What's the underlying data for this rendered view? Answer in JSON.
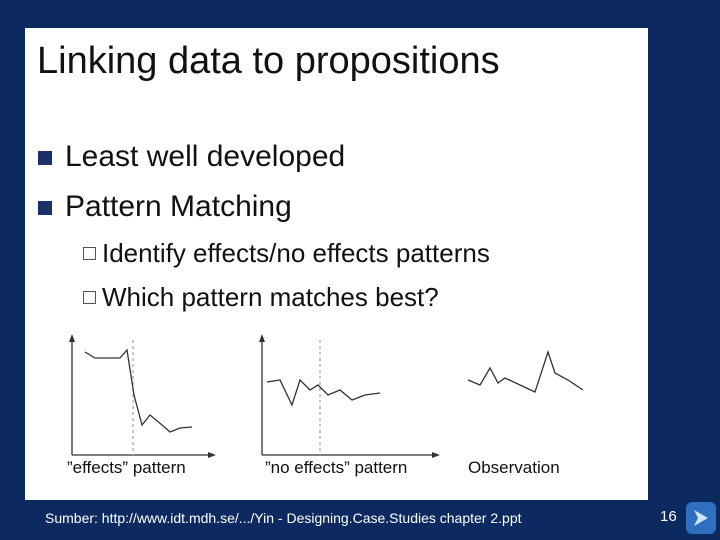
{
  "slide": {
    "title": "Linking data to propositions",
    "bullets": [
      "Least well developed",
      "Pattern Matching"
    ],
    "sub_bullets": [
      "Identify effects/no effects patterns",
      "Which pattern matches best?"
    ],
    "figure_labels": [
      "”effects” pattern",
      "”no effects” pattern",
      "Observation"
    ],
    "footer": "Sumber: http://www.idt.mdh.se/.../Yin - Designing.Case.Studies chapter 2.ppt",
    "page_number": "16"
  }
}
